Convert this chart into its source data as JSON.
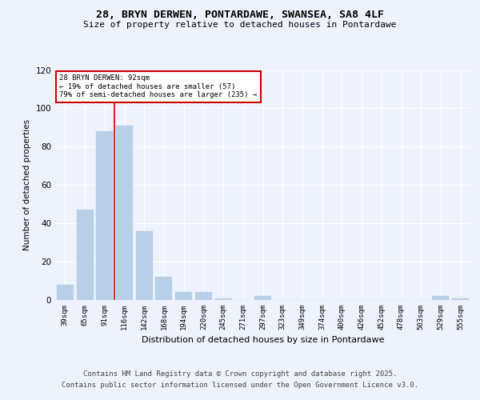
{
  "title_main": "28, BRYN DERWEN, PONTARDAWE, SWANSEA, SA8 4LF",
  "title_sub": "Size of property relative to detached houses in Pontardawe",
  "xlabel": "Distribution of detached houses by size in Pontardawe",
  "ylabel": "Number of detached properties",
  "categories": [
    "39sqm",
    "65sqm",
    "91sqm",
    "116sqm",
    "142sqm",
    "168sqm",
    "194sqm",
    "220sqm",
    "245sqm",
    "271sqm",
    "297sqm",
    "323sqm",
    "349sqm",
    "374sqm",
    "400sqm",
    "426sqm",
    "452sqm",
    "478sqm",
    "503sqm",
    "529sqm",
    "555sqm"
  ],
  "values": [
    8,
    47,
    88,
    91,
    36,
    12,
    4,
    4,
    1,
    0,
    2,
    0,
    0,
    0,
    0,
    0,
    0,
    0,
    0,
    2,
    1
  ],
  "bar_color": "#b8cfe8",
  "bar_edge_color": "#b8cfe8",
  "subject_line_color": "#cc0000",
  "ylim": [
    0,
    120
  ],
  "yticks": [
    0,
    20,
    40,
    60,
    80,
    100,
    120
  ],
  "annotation_line1": "28 BRYN DERWEN: 92sqm",
  "annotation_line2": "← 19% of detached houses are smaller (57)",
  "annotation_line3": "79% of semi-detached houses are larger (235) →",
  "annotation_box_color": "#cc0000",
  "footer_line1": "Contains HM Land Registry data © Crown copyright and database right 2025.",
  "footer_line2": "Contains public sector information licensed under the Open Government Licence v3.0.",
  "bg_color": "#eef2fc",
  "grid_color": "#ffffff"
}
